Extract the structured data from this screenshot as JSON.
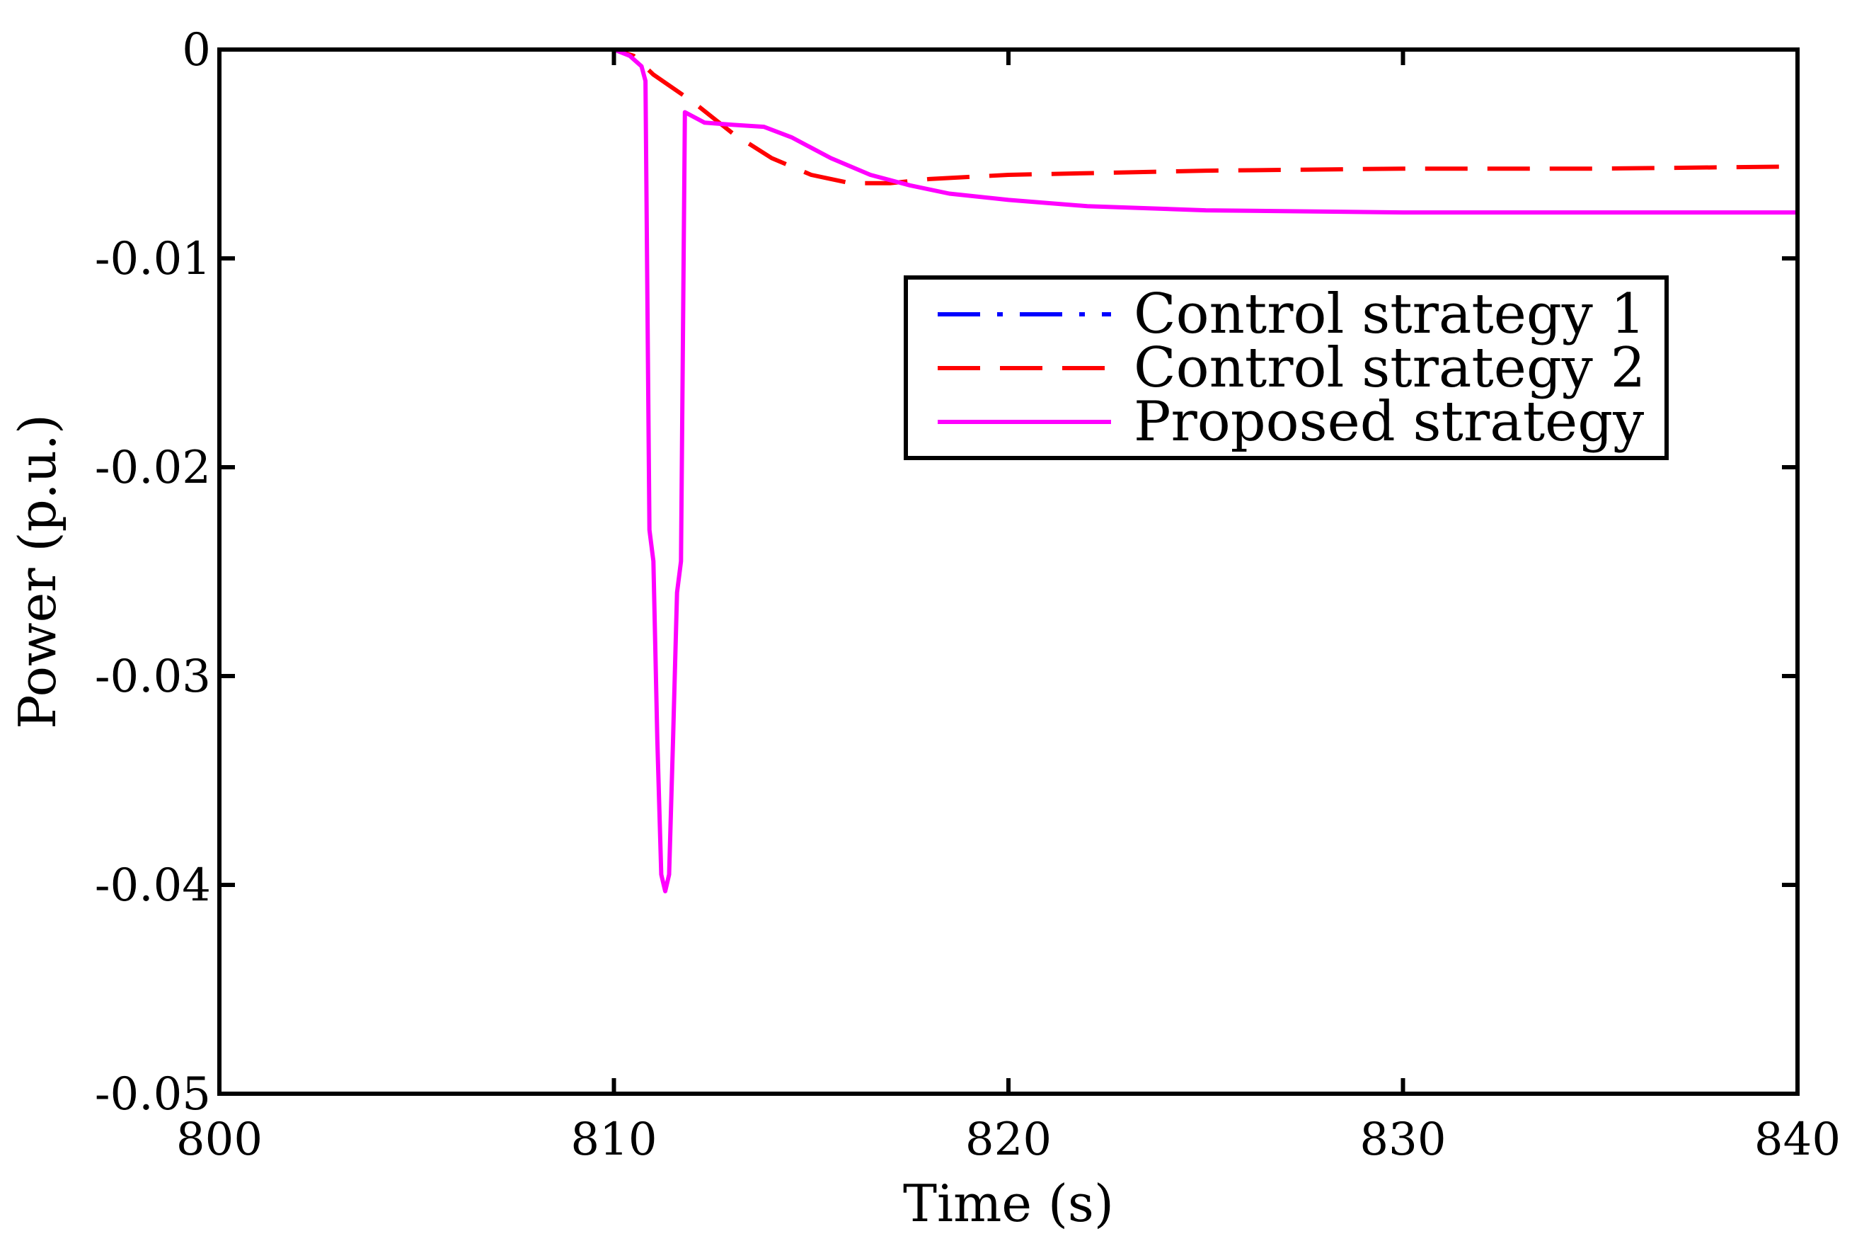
{
  "chart_data": {
    "type": "line",
    "xlabel": "Time (s)",
    "ylabel": "Power (p.u.)",
    "xlim": [
      800,
      840
    ],
    "ylim": [
      -0.05,
      0
    ],
    "x_ticks": [
      800,
      810,
      820,
      830,
      840
    ],
    "x_tick_labels": [
      "800",
      "810",
      "820",
      "830",
      "840"
    ],
    "y_ticks": [
      0,
      -0.01,
      -0.02,
      -0.03,
      -0.04,
      -0.05
    ],
    "y_tick_labels": [
      "0",
      "-0.01",
      "-0.02",
      "-0.03",
      "-0.04",
      "-0.05"
    ],
    "grid": false,
    "legend_position": "upper-right",
    "series": [
      {
        "name": "Control strategy 1",
        "color": "#0000ff",
        "style": "dash-dot",
        "points": [
          [
            800,
            0
          ],
          [
            810,
            0
          ],
          [
            840,
            0
          ]
        ]
      },
      {
        "name": "Control strategy 2",
        "color": "#ff0000",
        "style": "dashed",
        "points": [
          [
            800,
            0
          ],
          [
            810,
            0
          ],
          [
            810.5,
            -0.0003
          ],
          [
            811,
            -0.0012
          ],
          [
            812,
            -0.0025
          ],
          [
            813,
            -0.004
          ],
          [
            814,
            -0.0052
          ],
          [
            815,
            -0.006
          ],
          [
            816,
            -0.0064
          ],
          [
            817,
            -0.0064
          ],
          [
            818,
            -0.0062
          ],
          [
            820,
            -0.006
          ],
          [
            825,
            -0.0058
          ],
          [
            830,
            -0.0057
          ],
          [
            835,
            -0.0057
          ],
          [
            840,
            -0.0056
          ]
        ]
      },
      {
        "name": "Proposed strategy",
        "color": "#ff00ff",
        "style": "solid",
        "points": [
          [
            800,
            0
          ],
          [
            810,
            0
          ],
          [
            810.4,
            -0.0003
          ],
          [
            810.7,
            -0.0008
          ],
          [
            810.8,
            -0.0015
          ],
          [
            810.9,
            -0.023
          ],
          [
            811.0,
            -0.0245
          ],
          [
            811.1,
            -0.033
          ],
          [
            811.2,
            -0.0395
          ],
          [
            811.3,
            -0.0403
          ],
          [
            811.4,
            -0.0395
          ],
          [
            811.5,
            -0.033
          ],
          [
            811.6,
            -0.026
          ],
          [
            811.7,
            -0.0245
          ],
          [
            811.8,
            -0.003
          ],
          [
            812.3,
            -0.0035
          ],
          [
            813,
            -0.0036
          ],
          [
            813.8,
            -0.0037
          ],
          [
            814.5,
            -0.0042
          ],
          [
            815.5,
            -0.0052
          ],
          [
            816.5,
            -0.006
          ],
          [
            817.5,
            -0.0065
          ],
          [
            818.5,
            -0.0069
          ],
          [
            820,
            -0.0072
          ],
          [
            822,
            -0.0075
          ],
          [
            825,
            -0.0077
          ],
          [
            830,
            -0.0078
          ],
          [
            835,
            -0.0078
          ],
          [
            840,
            -0.0078
          ]
        ]
      }
    ]
  }
}
